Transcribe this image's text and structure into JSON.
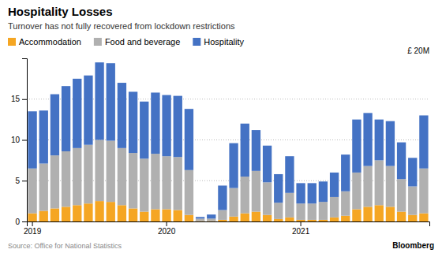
{
  "chart_data": {
    "type": "bar",
    "title": "Hospitality Losses",
    "subtitle": "Turnover has not fully recovered from lockdown restrictions",
    "ylabel": "£ 20M",
    "source": "Source: Office for National Statistics",
    "annotations": [
      "Bloomberg"
    ],
    "categories": [
      "2019",
      null,
      null,
      null,
      null,
      null,
      null,
      null,
      null,
      null,
      null,
      null,
      "2020",
      null,
      null,
      null,
      null,
      null,
      null,
      null,
      null,
      null,
      null,
      null,
      "2021",
      null,
      null,
      null,
      null,
      null,
      null,
      null,
      null,
      null,
      null,
      null
    ],
    "series": [
      {
        "name": "Accommodation",
        "color": "#f5a623",
        "values": [
          1.0,
          1.3,
          1.6,
          1.8,
          2.0,
          2.2,
          2.5,
          2.4,
          2.0,
          1.6,
          1.2,
          1.5,
          1.5,
          1.4,
          0.8,
          0.05,
          0.05,
          0.2,
          0.6,
          1.0,
          1.2,
          0.8,
          0.3,
          0.5,
          0.2,
          0.2,
          0.2,
          0.5,
          0.7,
          1.5,
          1.8,
          2.0,
          1.8,
          1.2,
          0.8,
          1.0
        ]
      },
      {
        "name": "Food and beverage",
        "color": "#b0b0b0",
        "values": [
          5.5,
          5.8,
          6.5,
          6.8,
          7.0,
          7.2,
          7.5,
          7.5,
          7.0,
          6.8,
          6.5,
          6.8,
          6.5,
          6.5,
          5.5,
          0.3,
          0.3,
          1.2,
          3.5,
          4.5,
          5.0,
          4.0,
          2.0,
          3.0,
          2.0,
          2.0,
          2.2,
          2.5,
          3.0,
          4.5,
          5.0,
          5.5,
          5.0,
          4.0,
          3.5,
          5.5
        ]
      },
      {
        "name": "Hospitality",
        "color": "#4472c4",
        "values": [
          7.0,
          6.5,
          7.5,
          8.0,
          8.5,
          8.5,
          9.5,
          9.5,
          8.0,
          7.5,
          7.0,
          7.5,
          7.5,
          7.5,
          7.5,
          0.2,
          0.5,
          3.0,
          5.5,
          6.5,
          5.0,
          4.5,
          3.5,
          4.5,
          2.5,
          2.5,
          2.5,
          3.0,
          4.5,
          6.5,
          6.5,
          5.0,
          5.5,
          4.5,
          3.5,
          6.5
        ]
      }
    ],
    "stacked": true,
    "ylim": [
      0,
      20
    ],
    "yticks": [
      0,
      5,
      10,
      15
    ],
    "grid": true,
    "legend": "top-left"
  }
}
